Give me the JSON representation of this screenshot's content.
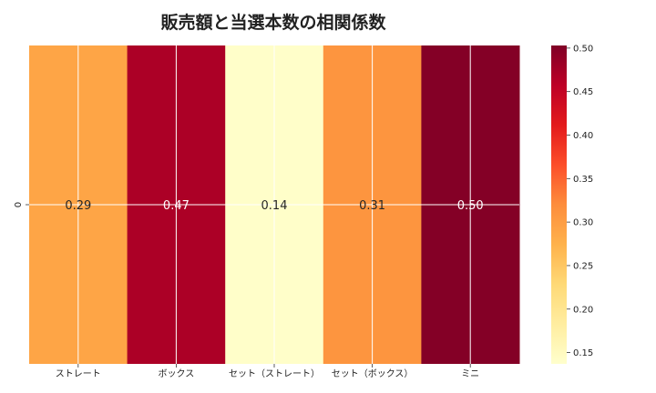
{
  "chart_data": {
    "type": "heatmap",
    "title": "販売額と当選本数の相関係数",
    "row_labels": [
      "0"
    ],
    "col_labels": [
      "ストレート",
      "ボックス",
      "セット（ストレート）",
      "セット（ボックス）",
      "ミニ"
    ],
    "values": [
      [
        0.29,
        0.47,
        0.14,
        0.31,
        0.5
      ]
    ],
    "value_labels": [
      "0.29",
      "0.47",
      "0.14",
      "0.31",
      "0.50"
    ],
    "colormap": "YlOrRd",
    "vmin": 0.137,
    "vmax": 0.503,
    "colorbar_ticks": [
      "0.15",
      "0.20",
      "0.25",
      "0.30",
      "0.35",
      "0.40",
      "0.45",
      "0.50"
    ],
    "grid": true
  }
}
